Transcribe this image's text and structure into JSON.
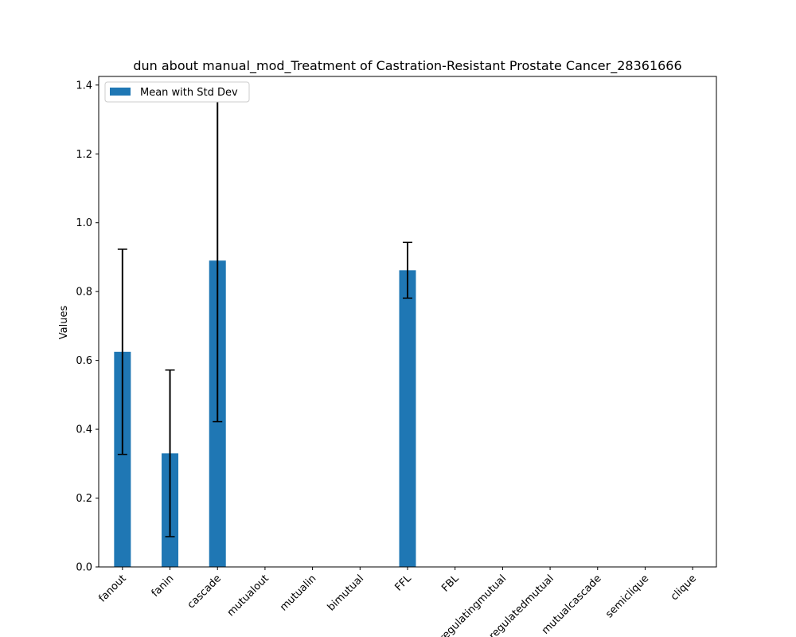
{
  "chart_data": {
    "type": "bar",
    "title": "dun about manual_mod_Treatment of Castration-Resistant Prostate Cancer_28361666",
    "xlabel": "",
    "ylabel": "Values",
    "ylim": [
      0,
      1.425
    ],
    "yticks": [
      0.0,
      0.2,
      0.4,
      0.6,
      0.8,
      1.0,
      1.2,
      1.4
    ],
    "ytick_labels": [
      "0.0",
      "0.2",
      "0.4",
      "0.6",
      "0.8",
      "1.0",
      "1.2",
      "1.4"
    ],
    "grid": false,
    "legend_position": "upper-left",
    "bar_color": "#1f77b4",
    "error_color": "#000000",
    "categories": [
      "fanout",
      "fanin",
      "cascade",
      "mutualout",
      "mutualin",
      "bimutual",
      "FFL",
      "FBL",
      "regulatingmutual",
      "regulatedmutual",
      "mutualcascade",
      "semiclique",
      "clique"
    ],
    "series": [
      {
        "name": "Mean with Std Dev",
        "values": [
          0.625,
          0.33,
          0.89,
          0,
          0,
          0,
          0.862,
          0,
          0,
          0,
          0,
          0,
          0
        ],
        "errors": [
          0.298,
          0.242,
          0.468,
          0,
          0,
          0,
          0.081,
          0,
          0,
          0,
          0,
          0,
          0
        ]
      }
    ]
  }
}
